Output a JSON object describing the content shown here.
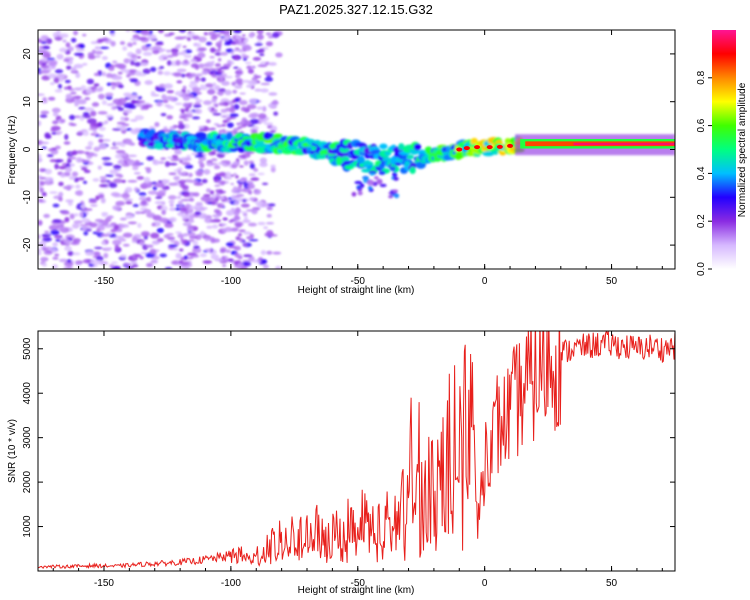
{
  "chart_data": [
    {
      "type": "heatmap",
      "title": "PAZ1.2025.327.12.15.G32",
      "xlabel": "Height of straight line (km)",
      "ylabel": "Frequency (Hz)",
      "xlim": [
        -176,
        75
      ],
      "ylim": [
        -25,
        25
      ],
      "xticks": [
        -150,
        -100,
        -50,
        0,
        50
      ],
      "yticks": [
        -20,
        -10,
        0,
        10,
        20
      ],
      "colorbar": {
        "label": "Normalized spectral amplitude",
        "range": [
          0.0,
          1.0
        ],
        "ticks": [
          0.0,
          0.2,
          0.4,
          0.6,
          0.8
        ],
        "tick_labels": [
          "0.0",
          "0.2",
          "0.4",
          "0.6",
          "0.8"
        ],
        "colormap": [
          "#ffffff",
          "#d6b8ff",
          "#8a2be2",
          "#2200ff",
          "#00bfff",
          "#00ff80",
          "#40ff00",
          "#ffff00",
          "#ff8800",
          "#ff0000",
          "#ff1493"
        ]
      },
      "ridge": {
        "x": [
          -135,
          -125,
          -115,
          -105,
          -95,
          -85,
          -75,
          -65,
          -55,
          -45,
          -35,
          -25,
          -15,
          -5,
          5,
          15,
          25,
          35,
          45,
          55,
          65,
          75
        ],
        "frequency": [
          2.0,
          2.0,
          1.5,
          1.5,
          1.5,
          1.5,
          1.0,
          0.0,
          -1.0,
          -2.0,
          -2.0,
          -1.5,
          -0.5,
          0.5,
          0.5,
          1.0,
          1.0,
          1.0,
          1.0,
          1.0,
          1.0,
          1.0
        ],
        "amplitude": [
          0.35,
          0.45,
          0.45,
          0.5,
          0.5,
          0.55,
          0.5,
          0.5,
          0.45,
          0.45,
          0.45,
          0.5,
          0.55,
          0.65,
          0.7,
          0.8,
          0.85,
          0.9,
          0.95,
          0.95,
          0.95,
          0.95
        ]
      }
    },
    {
      "type": "line",
      "xlabel": "Height of straight line (km)",
      "ylabel": "SNR (10 * v/v)",
      "xlim": [
        -176,
        75
      ],
      "ylim": [
        0,
        5400
      ],
      "xticks": [
        -150,
        -100,
        -50,
        0,
        50
      ],
      "yticks": [
        1000,
        2000,
        3000,
        4000,
        5000
      ],
      "line_color": "#e8201c",
      "series": [
        {
          "name": "SNR",
          "x": [
            -176,
            -165,
            -155,
            -145,
            -135,
            -125,
            -115,
            -105,
            -97,
            -92,
            -88,
            -84,
            -80,
            -76,
            -72,
            -68,
            -64,
            -60,
            -56,
            -52,
            -48,
            -44,
            -40,
            -36,
            -32,
            -29,
            -27,
            -25,
            -23,
            -21,
            -19,
            -17,
            -15,
            -13,
            -11,
            -9,
            -7,
            -5,
            -4,
            -3,
            -2,
            0,
            3,
            6,
            9,
            12,
            16,
            20,
            25,
            30,
            35,
            40,
            45,
            50,
            55,
            60,
            65,
            70,
            75
          ],
          "y": [
            100,
            100,
            120,
            110,
            150,
            180,
            220,
            300,
            380,
            250,
            400,
            550,
            700,
            800,
            650,
            900,
            850,
            750,
            1000,
            900,
            1050,
            900,
            950,
            1100,
            1300,
            1800,
            2200,
            1600,
            1500,
            1800,
            2000,
            2300,
            2500,
            2600,
            2800,
            3000,
            3300,
            3600,
            3200,
            2200,
            1600,
            2700,
            3000,
            3200,
            3500,
            3800,
            4100,
            4400,
            4700,
            4900,
            5000,
            5050,
            5100,
            5100,
            5050,
            5000,
            5050,
            5000,
            5050
          ],
          "spikes": [
            {
              "x": -29,
              "y": 3900
            },
            {
              "x": -26,
              "y": 3800
            },
            {
              "x": -5,
              "y": 4700
            },
            {
              "x": -2,
              "y": 1150
            },
            {
              "x": 5,
              "y": 4400
            },
            {
              "x": 12,
              "y": 4300
            }
          ]
        }
      ]
    }
  ]
}
